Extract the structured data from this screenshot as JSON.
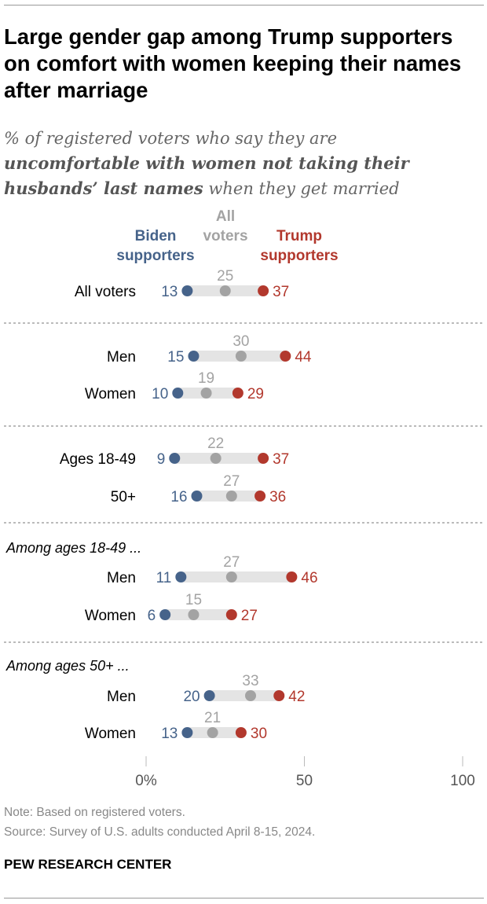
{
  "title": "Large gender gap among Trump supporters on comfort with women keeping their names after marriage",
  "subtitle": {
    "part1": "% of registered voters who say they are ",
    "bold": "uncomfortable with women not taking their husbands’ last names",
    "part2": " when they get married"
  },
  "colors": {
    "biden": "#46638a",
    "all": "#a3a3a3",
    "trump": "#b2382d",
    "bar": "#e4e4e4"
  },
  "chart_data": {
    "type": "dot",
    "legend": {
      "biden": [
        "Biden",
        "supporters"
      ],
      "all": [
        "All",
        "voters"
      ],
      "trump": [
        "Trump",
        "supporters"
      ]
    },
    "xlim": [
      0,
      100
    ],
    "xticks": [
      "0%",
      "50",
      "100"
    ],
    "rows": [
      {
        "label": "All voters",
        "biden": 13,
        "all": 25,
        "trump": 37
      },
      {
        "label": "Men",
        "biden": 15,
        "all": 30,
        "trump": 44
      },
      {
        "label": "Women",
        "biden": 10,
        "all": 19,
        "trump": 29
      },
      {
        "label": "Ages 18-49",
        "biden": 9,
        "all": 22,
        "trump": 37
      },
      {
        "label": "50+",
        "biden": 16,
        "all": 27,
        "trump": 36
      },
      {
        "label": "Men",
        "biden": 11,
        "all": 27,
        "trump": 46
      },
      {
        "label": "Women",
        "biden": 6,
        "all": 15,
        "trump": 27
      },
      {
        "label": "Men",
        "biden": 20,
        "all": 33,
        "trump": 42
      },
      {
        "label": "Women",
        "biden": 13,
        "all": 21,
        "trump": 30
      }
    ],
    "group_headers": [
      "Among ages 18-49 ...",
      "Among ages 50+ ..."
    ]
  },
  "footer": {
    "note": "Note: Based on registered voters.",
    "source": "Source: Survey of U.S. adults conducted April 8-15, 2024.",
    "brand": "PEW RESEARCH CENTER"
  }
}
